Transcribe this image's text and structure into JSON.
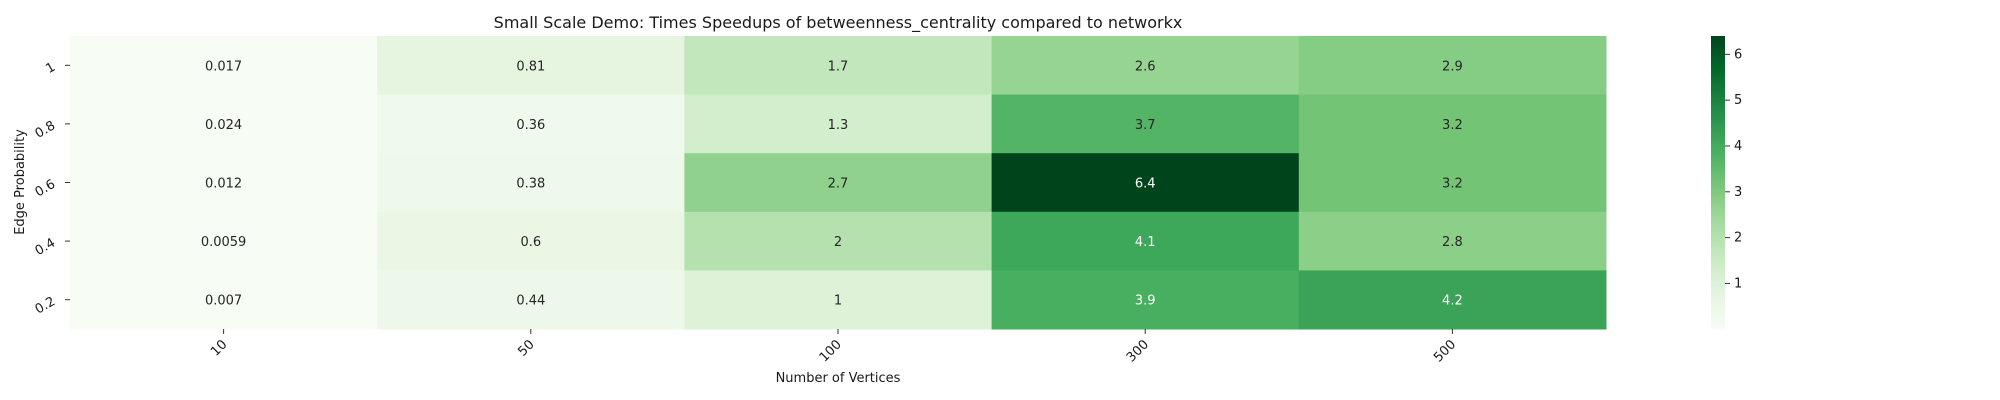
{
  "chart_data": {
    "type": "heatmap",
    "title": "Small Scale Demo: Times Speedups of betweenness_centrality compared to networkx",
    "xlabel": "Number of Vertices",
    "ylabel": "Edge Probability",
    "x_categories": [
      "10",
      "50",
      "100",
      "300",
      "500"
    ],
    "y_categories": [
      "1",
      "0.8",
      "0.6",
      "0.4",
      "0.2"
    ],
    "values": [
      [
        0.017,
        0.81,
        1.7,
        2.6,
        2.9
      ],
      [
        0.024,
        0.36,
        1.3,
        3.7,
        3.2
      ],
      [
        0.012,
        0.38,
        2.7,
        6.4,
        3.2
      ],
      [
        0.0059,
        0.6,
        2,
        4.1,
        2.8
      ],
      [
        0.007,
        0.44,
        1,
        3.9,
        4.2
      ]
    ],
    "annotations": [
      [
        "0.017",
        "0.81",
        "1.7",
        "2.6",
        "2.9"
      ],
      [
        "0.024",
        "0.36",
        "1.3",
        "3.7",
        "3.2"
      ],
      [
        "0.012",
        "0.38",
        "2.7",
        "6.4",
        "3.2"
      ],
      [
        "0.0059",
        "0.6",
        "2",
        "4.1",
        "2.8"
      ],
      [
        "0.007",
        "0.44",
        "1",
        "3.9",
        "4.2"
      ]
    ],
    "colormap": "Greens",
    "color_range": [
      0.0059,
      6.4
    ],
    "colorbar_ticks": [
      "1",
      "2",
      "3",
      "4",
      "5",
      "6"
    ],
    "colorbar_tick_values": [
      1,
      2,
      3,
      4,
      5,
      6
    ],
    "grid": false
  }
}
